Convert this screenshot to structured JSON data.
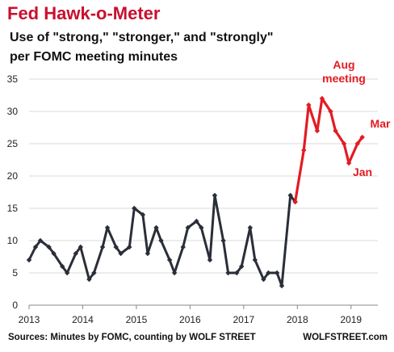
{
  "title": "Fed Hawk-o-Meter",
  "subtitle": [
    "Use of \"strong,\" \"stronger,\" and \"strongly\"",
    "per FOMC meeting minutes"
  ],
  "footer": {
    "source": "Sources: Minutes by FOMC, counting by WOLF STREET",
    "brand": "WOLFSTREET.com"
  },
  "colors": {
    "title": "#c8102e",
    "series_dark": "#2a2e38",
    "series_highlight": "#e31b23",
    "gridline": "#d9d9d9"
  },
  "chart_data": {
    "type": "line",
    "xlim": [
      2013,
      2019.5
    ],
    "ylim": [
      0,
      35
    ],
    "grid": true,
    "x_ticks": [
      "2013",
      "2014",
      "2015",
      "2016",
      "2017",
      "2018",
      "2019"
    ],
    "y_ticks": [
      "0",
      "5",
      "10",
      "15",
      "20",
      "25",
      "30",
      "35"
    ],
    "annotations": [
      "Aug\nmeeting",
      "Mar",
      "Jan"
    ],
    "series": [
      {
        "color": "#2a2e38",
        "x": [
          2013.0,
          2013.12,
          2013.21,
          2013.37,
          2013.46,
          2013.62,
          2013.71,
          2013.87,
          2013.96,
          2014.12,
          2014.21,
          2014.37,
          2014.46,
          2014.62,
          2014.71,
          2014.87,
          2014.96,
          2015.12,
          2015.21,
          2015.37,
          2015.46,
          2015.62,
          2015.71,
          2015.87,
          2015.96,
          2016.12,
          2016.21,
          2016.37,
          2016.46,
          2016.62,
          2016.71,
          2016.87,
          2016.96,
          2017.12,
          2017.21,
          2017.37,
          2017.46,
          2017.62,
          2017.71,
          2017.87,
          2017.96
        ],
        "y": [
          7,
          9,
          10,
          9,
          8,
          6,
          5,
          8,
          9,
          4,
          5,
          9,
          12,
          9,
          8,
          9,
          15,
          14,
          8,
          12,
          10,
          7,
          5,
          9,
          12,
          13,
          12,
          7,
          17,
          10,
          5,
          5,
          6,
          12,
          7,
          4,
          5,
          5,
          3,
          17,
          16
        ]
      },
      {
        "color": "#e31b23",
        "x": [
          2017.96,
          2018.12,
          2018.21,
          2018.37,
          2018.46,
          2018.62,
          2018.71,
          2018.87,
          2018.96,
          2019.12,
          2019.21
        ],
        "y": [
          16,
          24,
          31,
          27,
          32,
          30,
          27,
          25,
          22,
          25,
          26
        ]
      }
    ]
  }
}
